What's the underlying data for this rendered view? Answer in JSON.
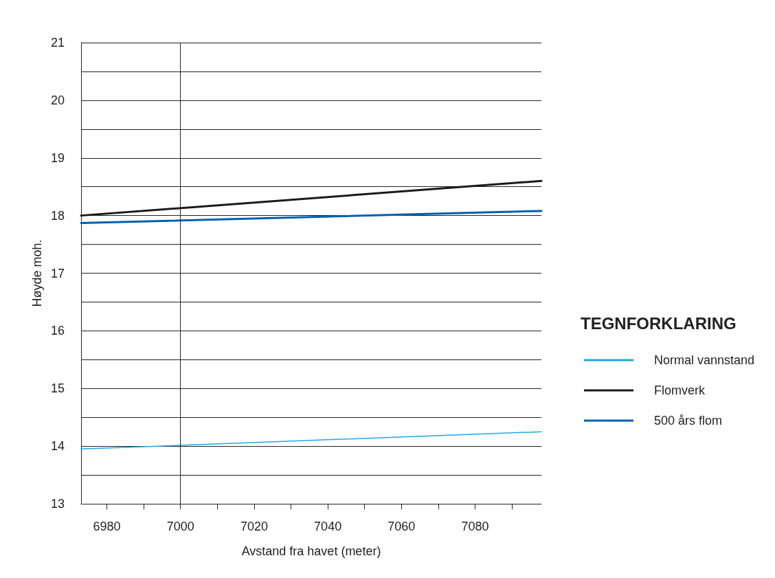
{
  "chart_data": {
    "type": "line",
    "xlabel": "Avstand fra havet (meter)",
    "ylabel": "Høyde moh.",
    "legend_title": "TEGNFORKLARING",
    "x": [
      6973,
      7098
    ],
    "series": [
      {
        "name": "Normal vannstand",
        "color": "#1ea8e6",
        "values": [
          13.95,
          14.25
        ]
      },
      {
        "name": "Flomverk",
        "color": "#1a1a1a",
        "values": [
          18.0,
          18.6
        ]
      },
      {
        "name": "500 års flom",
        "color": "#0060b0",
        "values": [
          17.87,
          18.08
        ]
      }
    ],
    "xlim": [
      6973,
      7098
    ],
    "xticks": [
      6980,
      {
        "value": 6990,
        "label": null
      },
      7000,
      {
        "value": 7010,
        "label": null
      },
      7020,
      {
        "value": 7030,
        "label": null
      },
      7040,
      {
        "value": 7050,
        "label": null
      },
      7060,
      {
        "value": 7070,
        "label": null
      },
      7080,
      {
        "value": 7090,
        "label": null
      }
    ],
    "ylim": [
      13,
      21
    ],
    "yticks": [
      13,
      {
        "value": 13.5,
        "label": null
      },
      14,
      {
        "value": 14.5,
        "label": null
      },
      15,
      {
        "value": 15.5,
        "label": null
      },
      16,
      {
        "value": 16.5,
        "label": null
      },
      17,
      {
        "value": 17.5,
        "label": null
      },
      18,
      {
        "value": 18.5,
        "label": null
      },
      19,
      {
        "value": 19.5,
        "label": null
      },
      20,
      {
        "value": 20.5,
        "label": null
      },
      21
    ],
    "grid": "y",
    "ref_lines": [
      {
        "axis": "x",
        "value": 7000
      }
    ],
    "legend": "right",
    "marker": "none",
    "line_style": "solid"
  }
}
